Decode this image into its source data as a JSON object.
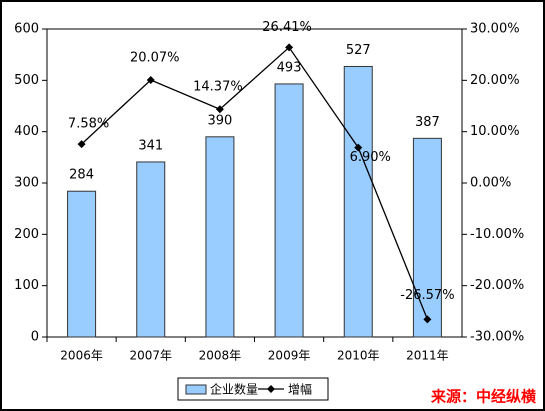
{
  "chart_data": {
    "type": "bar-line",
    "categories": [
      "2006年",
      "2007年",
      "2008年",
      "2009年",
      "2010年",
      "2011年"
    ],
    "series": [
      {
        "name": "企业数量",
        "type": "bar",
        "color": "#99ccff",
        "values": [
          284,
          341,
          390,
          493,
          527,
          387
        ]
      },
      {
        "name": "增幅",
        "type": "line",
        "axis": "y2",
        "color": "#000000",
        "values": [
          7.58,
          20.07,
          14.37,
          26.41,
          6.9,
          -26.57
        ],
        "value_labels": [
          "7.58%",
          "20.07%",
          "14.37%",
          "26.41%",
          "6.90%",
          "-26.57%"
        ]
      }
    ],
    "ylim": [
      0,
      600
    ],
    "yticks": [
      0,
      100,
      200,
      300,
      400,
      500,
      600
    ],
    "y2lim": [
      -30,
      30
    ],
    "y2ticks": [
      {
        "value": -30,
        "label": "-30.00%"
      },
      {
        "value": -20,
        "label": "-20.00%"
      },
      {
        "value": -10,
        "label": "-10.00%"
      },
      {
        "value": 0,
        "label": "0.00%"
      },
      {
        "value": 10,
        "label": "10.00%"
      },
      {
        "value": 20,
        "label": "20.00%"
      },
      {
        "value": 30,
        "label": "30.00%"
      }
    ],
    "source": "来源：中经纵横"
  }
}
